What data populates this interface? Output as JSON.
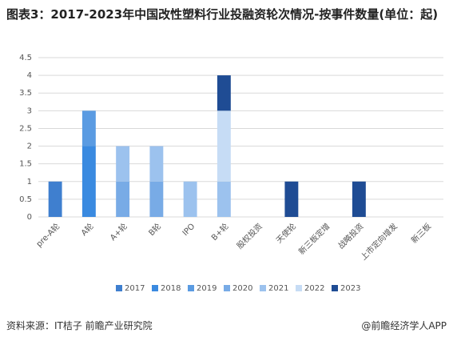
{
  "chart_data": {
    "type": "bar",
    "stacked": true,
    "title": "图表3：2017-2023年中国改性塑料行业投融资轮次情况-按事件数量(单位：起)",
    "source": "资料来源：IT桔子 前瞻产业研究院",
    "brand": "@前瞻经济学人APP",
    "categories": [
      "pre-A轮",
      "A轮",
      "A+轮",
      "B轮",
      "IPO",
      "B+轮",
      "股权投资",
      "天使轮",
      "新三板定增",
      "战略投资",
      "上市定向增发",
      "新三板"
    ],
    "series": [
      {
        "name": "2017",
        "color": "#3f7fcf",
        "values": [
          1,
          0,
          0,
          0,
          0,
          0,
          0,
          0,
          0,
          0,
          0,
          0
        ]
      },
      {
        "name": "2018",
        "color": "#3a8ae0",
        "values": [
          0,
          2,
          0,
          0,
          0,
          0,
          0,
          0,
          0,
          0,
          0,
          0
        ]
      },
      {
        "name": "2019",
        "color": "#5a9be2",
        "values": [
          0,
          1,
          0,
          0,
          0,
          0,
          0,
          0,
          0,
          0,
          0,
          0
        ]
      },
      {
        "name": "2020",
        "color": "#78abe6",
        "values": [
          0,
          0,
          1,
          1,
          0,
          0,
          0,
          0,
          0,
          0,
          0,
          0
        ]
      },
      {
        "name": "2021",
        "color": "#9cc2ee",
        "values": [
          0,
          0,
          1,
          1,
          1,
          1,
          0,
          0,
          0,
          0,
          0,
          0
        ]
      },
      {
        "name": "2022",
        "color": "#c6dcf5",
        "values": [
          0,
          0,
          0,
          0,
          0,
          2,
          0,
          0,
          0,
          0,
          0,
          0
        ]
      },
      {
        "name": "2023",
        "color": "#1f4c94",
        "values": [
          0,
          0,
          0,
          0,
          0,
          1,
          0,
          1,
          0,
          1,
          0,
          0
        ]
      }
    ],
    "ylim": [
      0,
      4.5
    ],
    "yticks": [
      0,
      0.5,
      1,
      1.5,
      2,
      2.5,
      3,
      3.5,
      4,
      4.5
    ],
    "grid": true
  }
}
